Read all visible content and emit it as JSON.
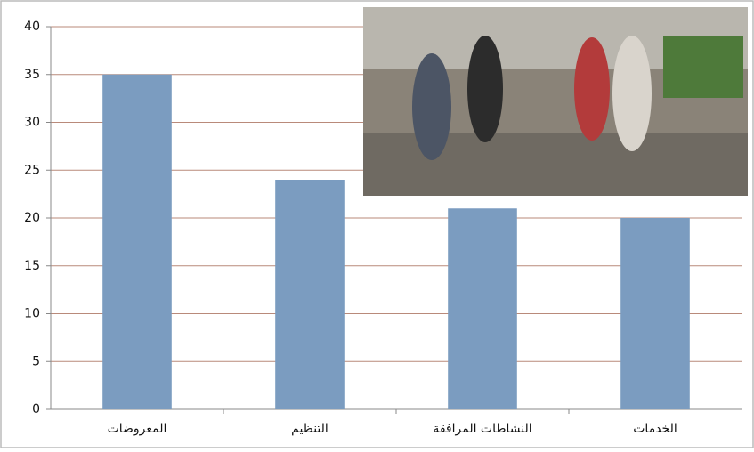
{
  "chart_data": {
    "type": "bar",
    "categories": [
      "المعروضات",
      "التنظيم",
      "النشاطات المرافقة",
      "الخدمات"
    ],
    "values": [
      35,
      24,
      21,
      20
    ],
    "color": "#7b9cc0",
    "ylim": [
      0,
      40
    ],
    "yticks": [
      0,
      5,
      10,
      15,
      20,
      25,
      30,
      35,
      40
    ],
    "grid": true
  }
}
